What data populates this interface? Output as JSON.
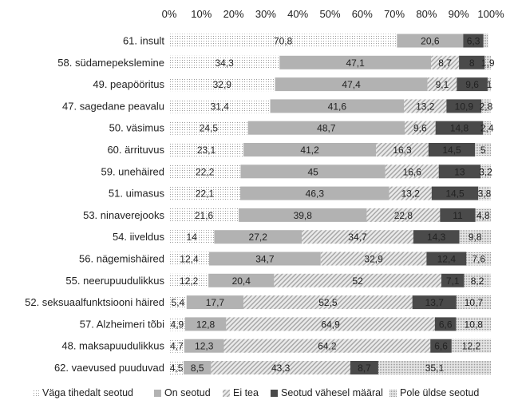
{
  "chart_data": {
    "type": "bar",
    "orientation": "horizontal",
    "stacked": true,
    "percent": true,
    "xlim": [
      0,
      100
    ],
    "x_ticks": [
      "0%",
      "10%",
      "20%",
      "30%",
      "40%",
      "50%",
      "60%",
      "70%",
      "80%",
      "90%",
      "100%"
    ],
    "x_axis_position": "top",
    "grid": false,
    "legend_position": "bottom",
    "categories": [
      "61. insult",
      "58. südamepekslemine",
      "49. peapööritus",
      "47. sagedane peavalu",
      "50. väsimus",
      "60. ärrituvus",
      "59. unehäired",
      "51. uimasus",
      "53. ninaverejooks",
      "54. iiveldus",
      "56. nägemishäired",
      "55. neerupuudulikkus",
      "52. seksuaalfunktsiooni häired",
      "57. Alzheimeri tõbi",
      "48. maksapuudulikkus",
      "62. vaevused puuduvad"
    ],
    "series": [
      {
        "name": "Väga tihedalt seotud",
        "color": "#f2f2f2",
        "pattern": "dots",
        "values": [
          70.8,
          34.3,
          32.9,
          31.4,
          24.5,
          23.1,
          22.2,
          22.1,
          21.6,
          14,
          12.4,
          12.2,
          5.4,
          4.9,
          4.7,
          4.5
        ],
        "labels": [
          "70,8",
          "34,3",
          "32,9",
          "31,4",
          "24,5",
          "23,1",
          "22,2",
          "22,1",
          "21,6",
          "14",
          "12,4",
          "12,2",
          "5,4",
          "4,9",
          "4,7",
          "4,5"
        ]
      },
      {
        "name": "On seotud",
        "color": "#b2b2b2",
        "pattern": "solid",
        "values": [
          20.6,
          47.1,
          47.4,
          41.6,
          48.7,
          41.2,
          45,
          46.3,
          39.8,
          27.2,
          34.7,
          20.4,
          17.7,
          12.8,
          12.3,
          8.5
        ],
        "labels": [
          "20,6",
          "47,1",
          "47,4",
          "41,6",
          "48,7",
          "41,2",
          "45",
          "46,3",
          "39,8",
          "27,2",
          "34,7",
          "20,4",
          "17,7",
          "12,8",
          "12,3",
          "8,5"
        ]
      },
      {
        "name": "Ei tea",
        "color": "#dadada",
        "pattern": "diagonal",
        "values": [
          0,
          8.7,
          9.1,
          13.2,
          9.6,
          16.3,
          16.6,
          13.2,
          22.8,
          34.7,
          32.9,
          52,
          52.5,
          64.9,
          64.2,
          43.3
        ],
        "labels": [
          "",
          "8,7",
          "9,1",
          "13,2",
          "9,6",
          "16,3",
          "16,6",
          "13,2",
          "22,8",
          "34,7",
          "32,9",
          "52",
          "52,5",
          "64,9",
          "64,2",
          "43,3"
        ]
      },
      {
        "name": "Seotud vähesel määral",
        "color": "#4a4a4a",
        "pattern": "solid",
        "values": [
          6.3,
          8,
          9.6,
          10.9,
          14.8,
          14.5,
          13,
          14.5,
          11,
          14.3,
          12.4,
          7.1,
          13.7,
          6.6,
          6.6,
          8.7
        ],
        "labels": [
          "6,3",
          "8",
          "9,6",
          "10,9",
          "14,8",
          "14,5",
          "13",
          "14,5",
          "11",
          "14,3",
          "12,4",
          "7,1",
          "13,7",
          "6,6",
          "6,6",
          "8,7"
        ]
      },
      {
        "name": "Pole üldse seotud",
        "color": "#cfcfcf",
        "pattern": "dense-dots",
        "values": [
          1.5,
          1.9,
          1,
          2.8,
          2.4,
          5,
          3.2,
          3.8,
          4.8,
          9.8,
          7.6,
          8.2,
          10.7,
          10.8,
          12.2,
          35.1
        ],
        "labels": [
          "",
          "1,9",
          "1",
          "2,8",
          "2,4",
          "5",
          "3,2",
          "3,8",
          "4,8",
          "9,8",
          "7,6",
          "8,2",
          "10,7",
          "10,8",
          "12,2",
          "35,1"
        ]
      }
    ]
  }
}
